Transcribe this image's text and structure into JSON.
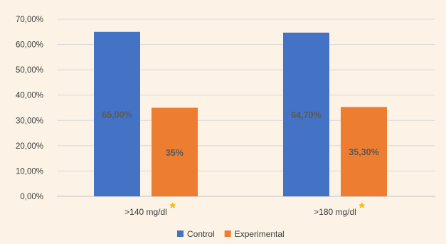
{
  "chart_data": {
    "type": "bar",
    "categories": [
      ">140 mg/dl",
      ">180 mg/dl"
    ],
    "category_markers": [
      "*",
      "*"
    ],
    "series": [
      {
        "name": "Control",
        "color": "#4472c4",
        "values": [
          65.0,
          64.7
        ],
        "labels": [
          "65,00%",
          "64,70%"
        ]
      },
      {
        "name": "Experimental",
        "color": "#ed7d31",
        "values": [
          35.0,
          35.3
        ],
        "labels": [
          "35%",
          "35,30%"
        ]
      }
    ],
    "ylim": [
      0,
      70
    ],
    "yticks": [
      0,
      10,
      20,
      30,
      40,
      50,
      60,
      70
    ],
    "ytick_labels": [
      "0,00%",
      "10,00%",
      "20,00%",
      "30,00%",
      "40,00%",
      "50,00%",
      "60,00%",
      "70,00%"
    ],
    "title": "",
    "xlabel": "",
    "ylabel": "",
    "grid": true,
    "legend_position": "bottom",
    "marker_color": "#f5b800"
  }
}
